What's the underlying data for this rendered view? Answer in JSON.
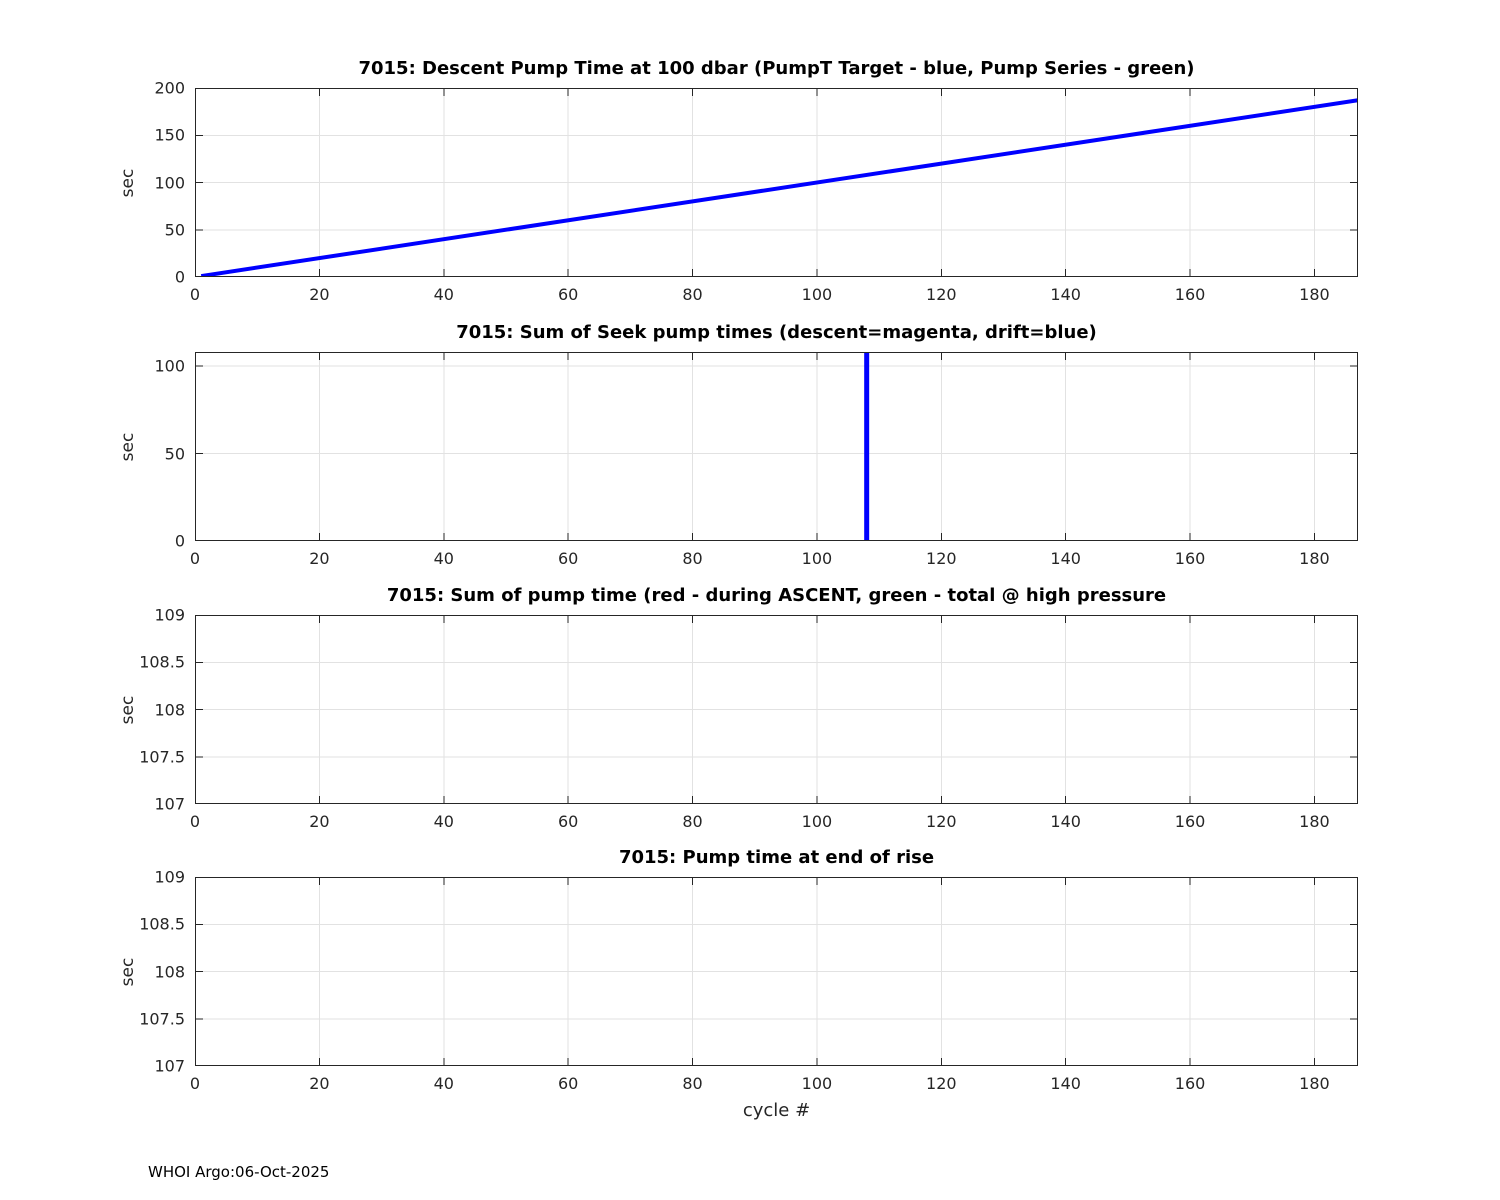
{
  "page": {
    "footer": "WHOI Argo:06-Oct-2025"
  },
  "style": {
    "axis_color": "#262626",
    "grid_color": "#e2e2e2",
    "line_blue": "#0000ff",
    "background": "#ffffff"
  },
  "chart_data": [
    {
      "type": "line",
      "title": "7015: Descent Pump Time at 100 dbar (PumpT Target - blue, Pump Series - green)",
      "ylabel": "sec",
      "xlabel": "",
      "xlim": [
        0,
        187
      ],
      "ylim": [
        0,
        200
      ],
      "xticks": [
        0,
        20,
        40,
        60,
        80,
        100,
        120,
        140,
        160,
        180
      ],
      "yticks": [
        0,
        50,
        100,
        150,
        200
      ],
      "grid": true,
      "series": [
        {
          "name": "PumpT Target",
          "color": "#0000ff",
          "width": 4,
          "points": [
            [
              1,
              1
            ],
            [
              187,
              187
            ]
          ]
        }
      ]
    },
    {
      "type": "line",
      "title": "7015: Sum of Seek pump times (descent=magenta, drift=blue)",
      "ylabel": "sec",
      "xlabel": "",
      "xlim": [
        0,
        187
      ],
      "ylim": [
        0,
        108
      ],
      "xticks": [
        0,
        20,
        40,
        60,
        80,
        100,
        120,
        140,
        160,
        180
      ],
      "yticks": [
        0,
        50,
        100
      ],
      "grid": true,
      "series": [
        {
          "name": "drift seek pump spike",
          "color": "#0000ff",
          "width": 5,
          "points": [
            [
              108,
              0
            ],
            [
              108,
              108
            ]
          ]
        }
      ]
    },
    {
      "type": "line",
      "title": "7015: Sum of pump time (red - during ASCENT, green - total @ high pressure",
      "ylabel": "sec",
      "xlabel": "",
      "xlim": [
        0,
        187
      ],
      "ylim": [
        107,
        109
      ],
      "xticks": [
        0,
        20,
        40,
        60,
        80,
        100,
        120,
        140,
        160,
        180
      ],
      "yticks": [
        107,
        107.5,
        108,
        108.5,
        109
      ],
      "grid": true,
      "series": []
    },
    {
      "type": "line",
      "title": "7015: Pump time at end of rise",
      "ylabel": "sec",
      "xlabel": "cycle #",
      "xlim": [
        0,
        187
      ],
      "ylim": [
        107,
        109
      ],
      "xticks": [
        0,
        20,
        40,
        60,
        80,
        100,
        120,
        140,
        160,
        180
      ],
      "yticks": [
        107,
        107.5,
        108,
        108.5,
        109
      ],
      "grid": true,
      "series": []
    }
  ]
}
